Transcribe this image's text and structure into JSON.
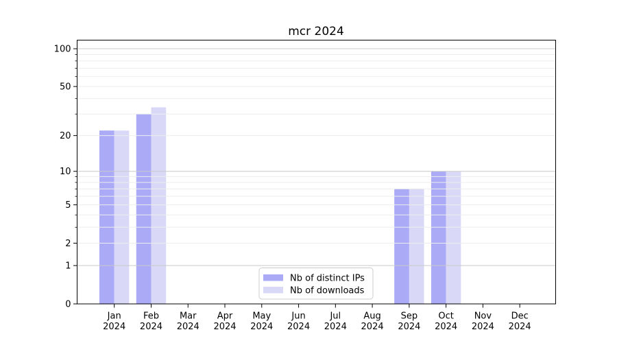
{
  "chart_data": {
    "type": "bar",
    "title": "mcr 2024",
    "categories": [
      "Jan",
      "Feb",
      "Mar",
      "Apr",
      "May",
      "Jun",
      "Jul",
      "Aug",
      "Sep",
      "Oct",
      "Nov",
      "Dec"
    ],
    "category_year_line": "2024",
    "series": [
      {
        "key": "distinct-ips",
        "name": "Nb of distinct IPs",
        "color": "#aaaaf7",
        "values": [
          22,
          30,
          0,
          0,
          0,
          0,
          0,
          0,
          7,
          10,
          0,
          0
        ]
      },
      {
        "key": "downloads",
        "name": "Nb of downloads",
        "color": "#d9d9f7",
        "values": [
          22,
          34,
          0,
          0,
          0,
          0,
          0,
          0,
          7,
          10,
          0,
          0
        ]
      }
    ],
    "yscale": "log1p",
    "ylim": [
      0,
      117
    ],
    "yticks_labeled": [
      0,
      1,
      2,
      5,
      10,
      20,
      50,
      100
    ],
    "ytick_minor_marks": [
      3,
      4,
      6,
      7,
      8,
      9,
      30,
      40,
      60,
      70,
      80,
      90
    ],
    "grid": {
      "orientation": "horizontal",
      "major_values": [
        1,
        10,
        100
      ],
      "minor_values": [
        2,
        3,
        4,
        5,
        6,
        7,
        8,
        9,
        20,
        30,
        40,
        50,
        60,
        70,
        80,
        90
      ],
      "major_color": "#c9c9c9",
      "minor_color": "#ededed"
    },
    "legend": {
      "position": "lower center"
    },
    "background_color": "#ffffff",
    "axis_color": "#000000"
  }
}
